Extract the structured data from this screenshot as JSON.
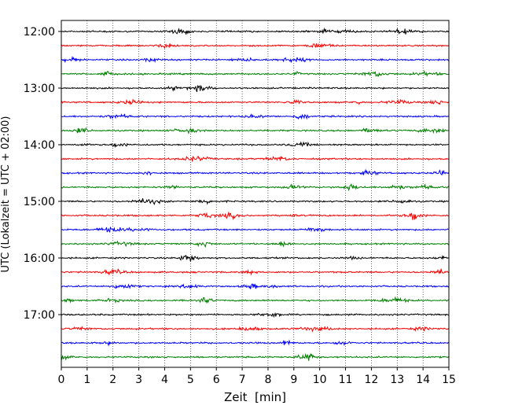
{
  "chart_data": {
    "type": "line",
    "title": "",
    "xlabel": "Zeit  [min]",
    "ylabel": "UTC (Lokalzeit = UTC + 02:00)",
    "xlim": [
      0,
      15
    ],
    "x_ticks": [
      "0",
      "1",
      "2",
      "3",
      "4",
      "5",
      "6",
      "7",
      "8",
      "9",
      "10",
      "11",
      "12",
      "13",
      "14",
      "15"
    ],
    "y_ticks": [
      {
        "label": "12:00",
        "row": 0
      },
      {
        "label": "13:00",
        "row": 4
      },
      {
        "label": "14:00",
        "row": 8
      },
      {
        "label": "15:00",
        "row": 12
      },
      {
        "label": "16:00",
        "row": 16
      },
      {
        "label": "17:00",
        "row": 20
      }
    ],
    "grid": {
      "x": true,
      "style": "dotted"
    },
    "trace_minutes": 15,
    "traces_per_hour": 4,
    "colors": [
      "#000000",
      "#ff0000",
      "#0000ff",
      "#008000"
    ],
    "traces": [
      {
        "start": "12:00",
        "color": "#000000"
      },
      {
        "start": "12:15",
        "color": "#ff0000"
      },
      {
        "start": "12:30",
        "color": "#0000ff"
      },
      {
        "start": "12:45",
        "color": "#008000"
      },
      {
        "start": "13:00",
        "color": "#000000"
      },
      {
        "start": "13:15",
        "color": "#ff0000"
      },
      {
        "start": "13:30",
        "color": "#0000ff"
      },
      {
        "start": "13:45",
        "color": "#008000"
      },
      {
        "start": "14:00",
        "color": "#000000"
      },
      {
        "start": "14:15",
        "color": "#ff0000"
      },
      {
        "start": "14:30",
        "color": "#0000ff"
      },
      {
        "start": "14:45",
        "color": "#008000"
      },
      {
        "start": "15:00",
        "color": "#000000"
      },
      {
        "start": "15:15",
        "color": "#ff0000"
      },
      {
        "start": "15:30",
        "color": "#0000ff"
      },
      {
        "start": "15:45",
        "color": "#008000"
      },
      {
        "start": "16:00",
        "color": "#000000"
      },
      {
        "start": "16:15",
        "color": "#ff0000"
      },
      {
        "start": "16:30",
        "color": "#0000ff"
      },
      {
        "start": "16:45",
        "color": "#008000"
      },
      {
        "start": "17:00",
        "color": "#000000"
      },
      {
        "start": "17:15",
        "color": "#ff0000"
      },
      {
        "start": "17:30",
        "color": "#0000ff"
      },
      {
        "start": "17:45",
        "color": "#008000"
      }
    ]
  }
}
